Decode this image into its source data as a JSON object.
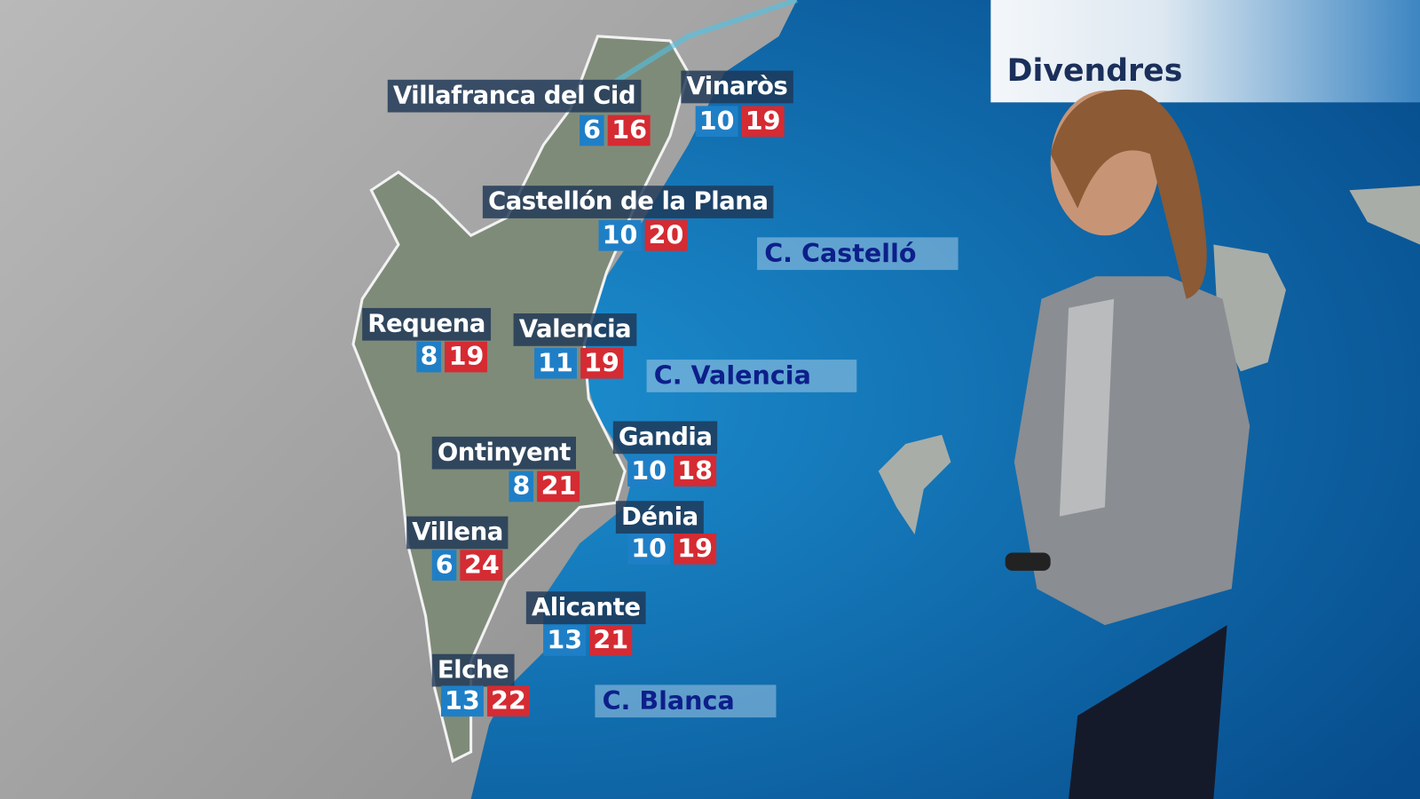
{
  "header": {
    "day": "Divendres"
  },
  "cities": [
    {
      "name": "Villafranca del Cid",
      "min": "6",
      "max": "16"
    },
    {
      "name": "Vinaròs",
      "min": "10",
      "max": "19"
    },
    {
      "name": "Castellón de la Plana",
      "min": "10",
      "max": "20"
    },
    {
      "name": "Requena",
      "min": "8",
      "max": "19"
    },
    {
      "name": "Valencia",
      "min": "11",
      "max": "19"
    },
    {
      "name": "Gandia",
      "min": "10",
      "max": "18"
    },
    {
      "name": "Ontinyent",
      "min": "8",
      "max": "21"
    },
    {
      "name": "Dénia",
      "min": "10",
      "max": "19"
    },
    {
      "name": "Villena",
      "min": "6",
      "max": "24"
    },
    {
      "name": "Alicante",
      "min": "13",
      "max": "21"
    },
    {
      "name": "Elche",
      "min": "13",
      "max": "22"
    }
  ],
  "sea_areas": [
    "C. Castelló",
    "C. Valencia",
    "C. Blanca"
  ],
  "colors": {
    "min_temp": "#1f7fc6",
    "max_temp": "#d52b33",
    "sea": "#0b5a9a",
    "land": "#8a8f8a",
    "region": "#7d8a78"
  }
}
